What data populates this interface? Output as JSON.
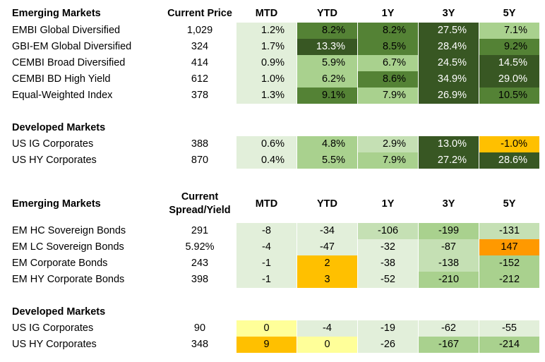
{
  "table1": {
    "header": {
      "section": "Emerging Markets",
      "price": "Current Price",
      "cols": [
        "MTD",
        "YTD",
        "1Y",
        "3Y",
        "5Y"
      ]
    },
    "rows": [
      {
        "label": "EMBI Global Diversified",
        "price": "1,029",
        "vals": [
          "1.2%",
          "8.2%",
          "8.2%",
          "27.5%",
          "7.1%"
        ]
      },
      {
        "label": "GBI-EM Global Diversified",
        "price": "324",
        "vals": [
          "1.7%",
          "13.3%",
          "8.5%",
          "28.4%",
          "9.2%"
        ]
      },
      {
        "label": "CEMBI Broad Diversified",
        "price": "414",
        "vals": [
          "0.9%",
          "5.9%",
          "6.7%",
          "24.5%",
          "14.5%"
        ]
      },
      {
        "label": "CEMBI BD High Yield",
        "price": "612",
        "vals": [
          "1.0%",
          "6.2%",
          "8.6%",
          "34.9%",
          "29.0%"
        ]
      },
      {
        "label": "Equal-Weighted Index",
        "price": "378",
        "vals": [
          "1.3%",
          "9.1%",
          "7.9%",
          "26.9%",
          "10.5%"
        ]
      }
    ],
    "dev_section": "Developed Markets",
    "dev_rows": [
      {
        "label": "US IG Corporates",
        "price": "388",
        "vals": [
          "0.6%",
          "4.8%",
          "2.9%",
          "13.0%",
          "-1.0%"
        ]
      },
      {
        "label": "US HY Corporates",
        "price": "870",
        "vals": [
          "0.4%",
          "5.5%",
          "7.9%",
          "27.2%",
          "28.6%"
        ]
      }
    ]
  },
  "table2": {
    "header": {
      "section": "Emerging Markets",
      "price_line1": "Current",
      "price_line2": "Spread/Yield",
      "cols": [
        "MTD",
        "YTD",
        "1Y",
        "3Y",
        "5Y"
      ]
    },
    "rows": [
      {
        "label": "EM HC Sovereign Bonds",
        "price": "291",
        "vals": [
          "-8",
          "-34",
          "-106",
          "-199",
          "-131"
        ]
      },
      {
        "label": "EM LC Sovereign Bonds",
        "price": "5.92%",
        "vals": [
          "-4",
          "-47",
          "-32",
          "-87",
          "147"
        ]
      },
      {
        "label": "EM Corporate Bonds",
        "price": "243",
        "vals": [
          "-1",
          "2",
          "-38",
          "-138",
          "-152"
        ]
      },
      {
        "label": "EM HY Corporate Bonds",
        "price": "398",
        "vals": [
          "-1",
          "3",
          "-52",
          "-210",
          "-212"
        ]
      }
    ],
    "dev_section": "Developed Markets",
    "dev_rows": [
      {
        "label": "US IG Corporates",
        "price": "90",
        "vals": [
          "0",
          "-4",
          "-19",
          "-62",
          "-55"
        ]
      },
      {
        "label": "US HY Corporates",
        "price": "348",
        "vals": [
          "9",
          "0",
          "-26",
          "-167",
          "-214"
        ]
      }
    ]
  },
  "colors": {
    "dark_green": "#385723",
    "medium_green": "#548235",
    "light_green": "#a9d18e",
    "pale_green": "#c5e0b4",
    "very_pale_green": "#e2efda",
    "amber": "#ffc000",
    "light_yellow": "#ffff99",
    "orange": "#ff9900"
  }
}
